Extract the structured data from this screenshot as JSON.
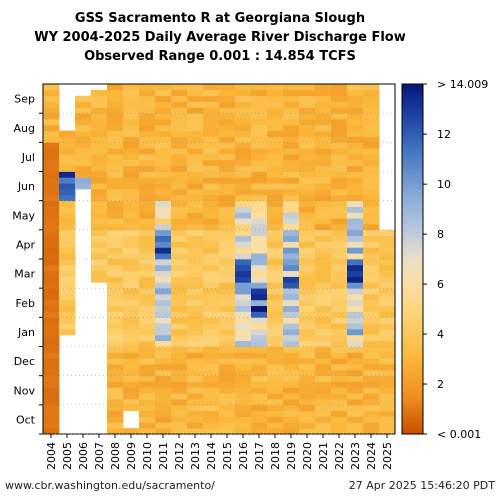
{
  "chart_data": {
    "type": "heatmap",
    "title_lines": [
      "GSS Sacramento R at Georgiana Slough",
      "WY 2004-2025 Daily Average River Discharge Flow",
      "Observed Range 0.001 : 14.854 TCFS"
    ],
    "x_categories": [
      "2004",
      "2005",
      "2006",
      "2007",
      "2008",
      "2009",
      "2010",
      "2011",
      "2012",
      "2013",
      "2014",
      "2015",
      "2016",
      "2017",
      "2018",
      "2019",
      "2020",
      "2021",
      "2022",
      "2023",
      "2024",
      "2025"
    ],
    "y_months": [
      "Oct",
      "Nov",
      "Dec",
      "Jan",
      "Feb",
      "Mar",
      "Apr",
      "May",
      "Jun",
      "Jul",
      "Aug",
      "Sep"
    ],
    "colorbar": {
      "min_label": "< 0.001",
      "max_label": "> 14.009",
      "ticks": [
        2,
        4,
        6,
        8,
        10,
        12
      ],
      "range": [
        0,
        14.009
      ]
    },
    "approx_typical_values_tcfs": [
      3,
      3,
      3,
      4,
      4,
      4,
      4,
      3,
      3,
      3,
      3,
      3
    ],
    "notable_high_flows": [
      {
        "year": "2005",
        "month": "Jun",
        "value": 14
      },
      {
        "year": "2006",
        "month": "Jun",
        "value": 12
      },
      {
        "year": "2011",
        "month": "Apr",
        "value": 13
      },
      {
        "year": "2016",
        "month": "Mar",
        "value": 13
      },
      {
        "year": "2017",
        "month": "Feb",
        "value": 14
      },
      {
        "year": "2019",
        "month": "Mar",
        "value": 13
      },
      {
        "year": "2023",
        "month": "Mar",
        "value": 13
      }
    ],
    "missing_data": [
      {
        "year": "2004",
        "months": "Oct-Jul partial"
      },
      {
        "year": "2005",
        "months": "Oct-Jan"
      },
      {
        "year": "2006",
        "months": "Oct-Jun"
      },
      {
        "year": "2007",
        "months": "Oct-Mar"
      }
    ]
  },
  "footer": {
    "url": "www.cbr.washington.edu/sacramento/",
    "timestamp": "27 Apr 2025 15:46:20 PDT"
  }
}
